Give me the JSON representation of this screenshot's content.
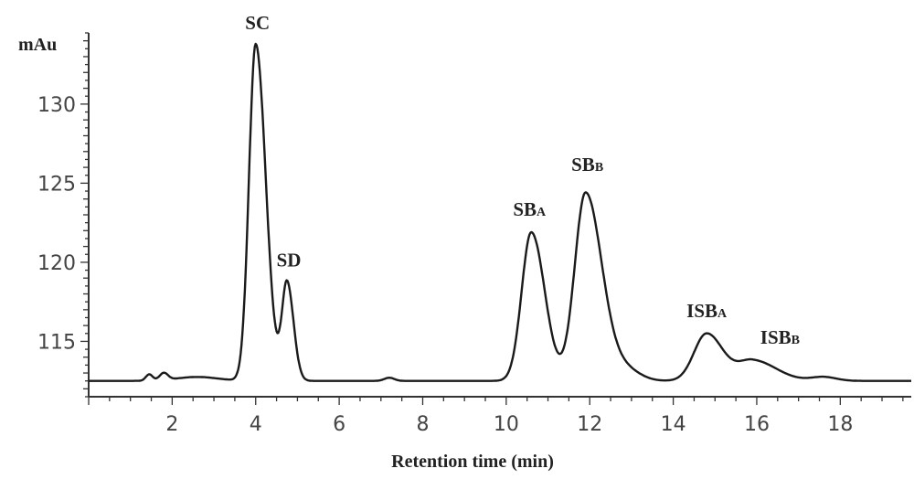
{
  "chart_data": {
    "type": "line",
    "title": "",
    "xlabel": "Retention time (min)",
    "ylabel": "mAu",
    "xlim": [
      0,
      19.7
    ],
    "ylim": [
      111.5,
      134.5
    ],
    "x_ticks": [
      2,
      4,
      6,
      8,
      10,
      12,
      14,
      16,
      18
    ],
    "y_ticks": [
      115,
      120,
      125,
      130
    ],
    "baseline": 112.5,
    "series": [
      {
        "values_note": "",
        "peaks": [
          {
            "label": "SC",
            "label_main": "SC",
            "label_sub": "",
            "rt": 4.0,
            "height": 133.8
          },
          {
            "label": "SD",
            "label_main": "SD",
            "label_sub": "",
            "rt": 4.75,
            "height": 118.7
          },
          {
            "label": "SBA",
            "label_main": "SB",
            "label_sub": "A",
            "rt": 10.6,
            "height": 121.9
          },
          {
            "label": "SBB",
            "label_main": "SB",
            "label_sub": "B",
            "rt": 11.9,
            "height": 124.4
          },
          {
            "label": "ISBA",
            "label_main": "ISB",
            "label_sub": "A",
            "rt": 14.8,
            "height": 115.5
          },
          {
            "label": "ISBB",
            "label_main": "ISB",
            "label_sub": "B",
            "rt": 15.9,
            "height": 113.8
          }
        ]
      }
    ],
    "grid": false,
    "legend": "none"
  }
}
